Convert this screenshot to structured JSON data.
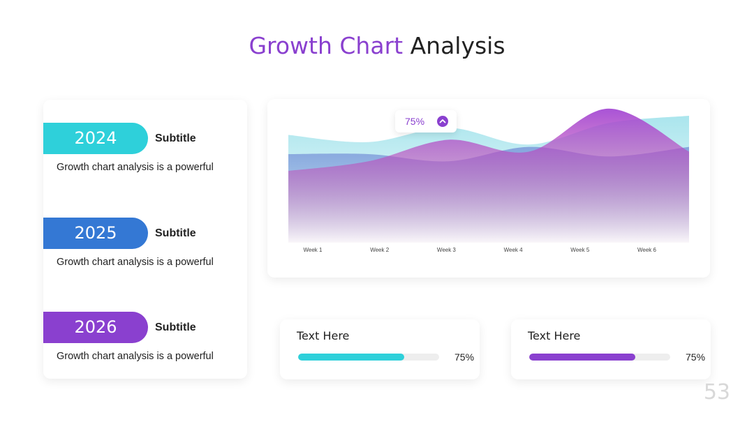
{
  "title": {
    "accent": "Growth Chart",
    "rest": "Analysis",
    "accent_color": "#8a40cf"
  },
  "timeline": [
    {
      "year": "2024",
      "subtitle": "Subtitle",
      "description": "Growth chart analysis is a powerful",
      "color": "#2ed0da"
    },
    {
      "year": "2025",
      "subtitle": "Subtitle",
      "description": "Growth chart analysis is a powerful",
      "color": "#3478d4"
    },
    {
      "year": "2026",
      "subtitle": "Subtitle",
      "description": "Growth chart analysis is a powerful",
      "color": "#8a40cf"
    }
  ],
  "chart_data": {
    "type": "area",
    "categories": [
      "Week 1",
      "Week 2",
      "Week 3",
      "Week 4",
      "Week 5",
      "Week 6"
    ],
    "series": [
      {
        "values": [
          45,
          42,
          48,
          41,
          50,
          53
        ],
        "color": "#a6e4ec"
      },
      {
        "values": [
          37,
          37,
          34,
          40,
          36,
          40
        ],
        "color": "#7f9ddb"
      },
      {
        "values": [
          30,
          34,
          43,
          38,
          56,
          38
        ],
        "color": "#a44ad4"
      }
    ],
    "ylim": [
      0,
      60
    ],
    "tooltip": {
      "value": "75%",
      "category": "Week 2"
    },
    "grid": false
  },
  "progress": [
    {
      "label": "Text Here",
      "value": 75,
      "value_text": "75%",
      "color": "#2ed0da"
    },
    {
      "label": "Text Here",
      "value": 75,
      "value_text": "75%",
      "color": "#8a40cf"
    }
  ],
  "page_number": "53"
}
